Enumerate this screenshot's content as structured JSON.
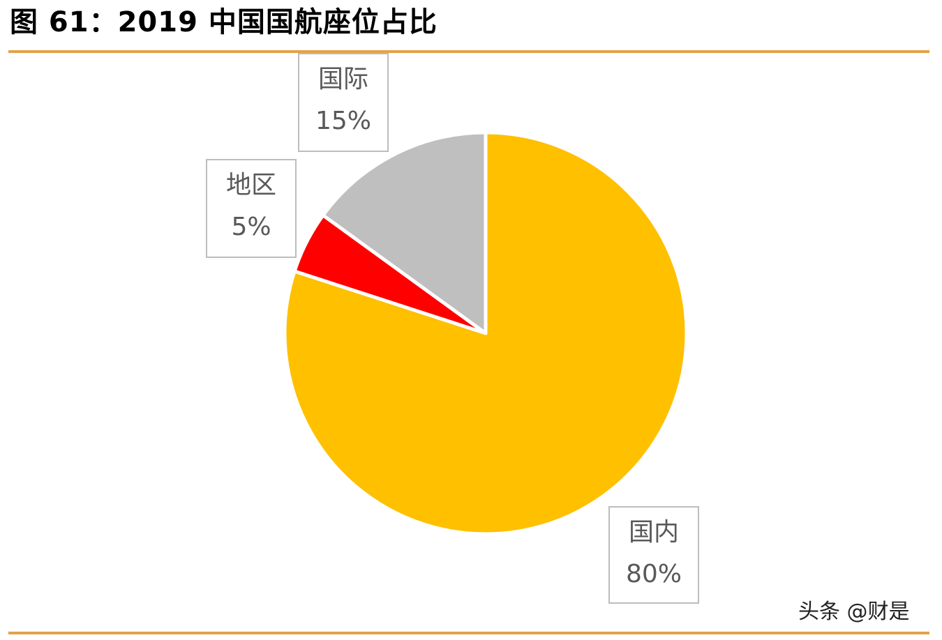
{
  "header": {
    "title": "图 61：2019 中国国航座位占比"
  },
  "colors": {
    "rule": "#e4a24a",
    "domestic": "#ffc000",
    "regional": "#ff0000",
    "international": "#bfbfbf"
  },
  "chart_data": {
    "type": "pie",
    "title": "图 61：2019 中国国航座位占比",
    "start_angle_deg": 0,
    "direction": "clockwise",
    "slices": [
      {
        "label": "国内",
        "value": 80,
        "value_label": "80%",
        "color": "#ffc000"
      },
      {
        "label": "地区",
        "value": 5,
        "value_label": "5%",
        "color": "#ff0000"
      },
      {
        "label": "国际",
        "value": 15,
        "value_label": "15%",
        "color": "#bfbfbf"
      }
    ]
  },
  "watermark": "头条 @财是"
}
